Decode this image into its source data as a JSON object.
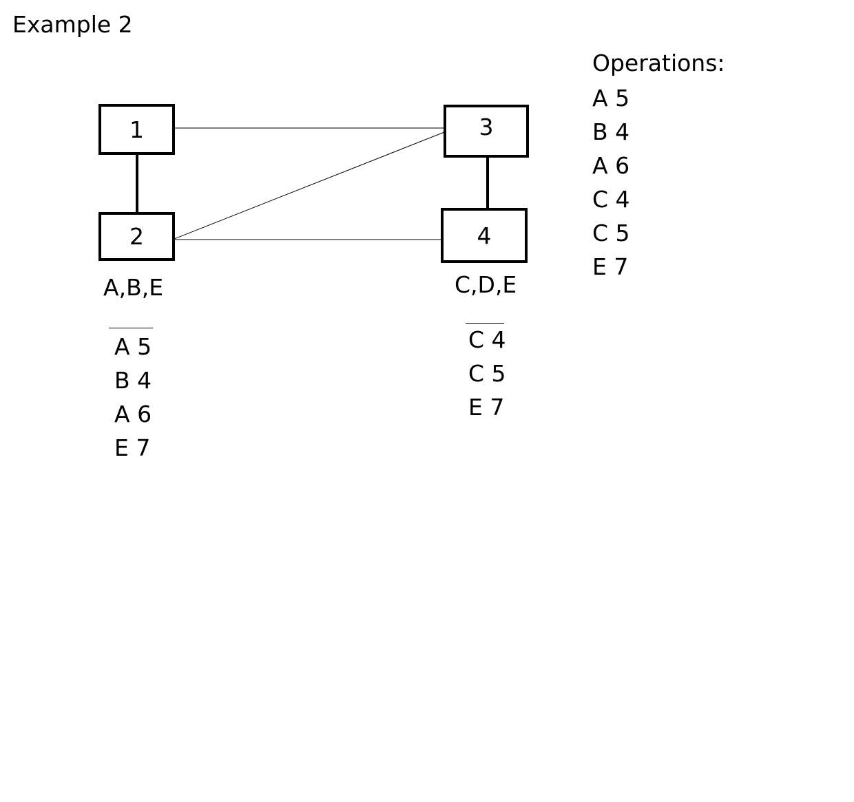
{
  "title": "Example 2",
  "nodes": {
    "n1": {
      "label": "1"
    },
    "n2": {
      "label": "2"
    },
    "n3": {
      "label": "3"
    },
    "n4": {
      "label": "4"
    }
  },
  "groups": {
    "left": {
      "label": "A,B,E",
      "operations": [
        "A 5",
        "B 4",
        "A 6",
        "E 7"
      ]
    },
    "right": {
      "label": "C,D,E",
      "operations": [
        "C 4",
        "C 5",
        "E 7"
      ]
    }
  },
  "operations_panel": {
    "heading": "Operations:",
    "items": [
      "A 5",
      "B 4",
      "A 6",
      "C 4",
      "C 5",
      "E 7"
    ]
  }
}
